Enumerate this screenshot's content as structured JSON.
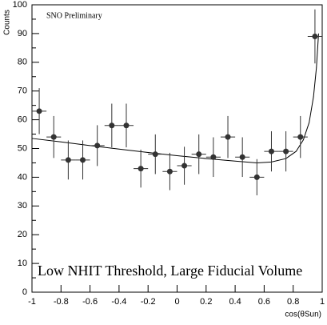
{
  "chart_data": {
    "type": "scatter",
    "annotation": "SNO Preliminary",
    "title": "Low NHIT Threshold, Large Fiducial Volume",
    "y_label": "Counts",
    "x_label": "cos(θSun)",
    "x": [
      -0.95,
      -0.85,
      -0.75,
      -0.65,
      -0.55,
      -0.45,
      -0.35,
      -0.25,
      -0.15,
      -0.05,
      0.05,
      0.15,
      0.25,
      0.35,
      0.45,
      0.55,
      0.65,
      0.75,
      0.85,
      0.95
    ],
    "values": [
      63,
      54,
      46,
      46,
      51,
      58,
      58,
      43,
      48,
      42,
      44,
      48,
      47,
      54,
      47,
      40,
      49,
      49,
      54,
      89
    ],
    "errors": [
      8,
      7.3,
      6.8,
      6.8,
      7.1,
      7.6,
      7.6,
      6.6,
      6.9,
      6.5,
      6.6,
      6.9,
      6.9,
      7.3,
      6.9,
      6.3,
      7,
      7,
      7.3,
      9.4
    ],
    "xerr": 0.05,
    "fit": {
      "x": [
        -1,
        -0.8,
        -0.6,
        -0.4,
        -0.2,
        0,
        0.2,
        0.4,
        0.55,
        0.65,
        0.75,
        0.82,
        0.87,
        0.91,
        0.94,
        0.96,
        0.975
      ],
      "y": [
        53.5,
        52.3,
        51,
        49.8,
        48.6,
        47.5,
        46.5,
        45.6,
        45,
        45.3,
        46.5,
        49,
        53,
        59,
        68,
        78,
        90
      ]
    },
    "color": "#333333",
    "xlim": [
      -1,
      1
    ],
    "ylim": [
      0,
      100
    ],
    "xticks": [
      -1,
      -0.8,
      -0.6,
      -0.4,
      -0.2,
      0,
      0.2,
      0.4,
      0.6,
      0.8,
      1
    ],
    "yticks": [
      0,
      10,
      20,
      30,
      40,
      50,
      60,
      70,
      80,
      90,
      100
    ]
  }
}
